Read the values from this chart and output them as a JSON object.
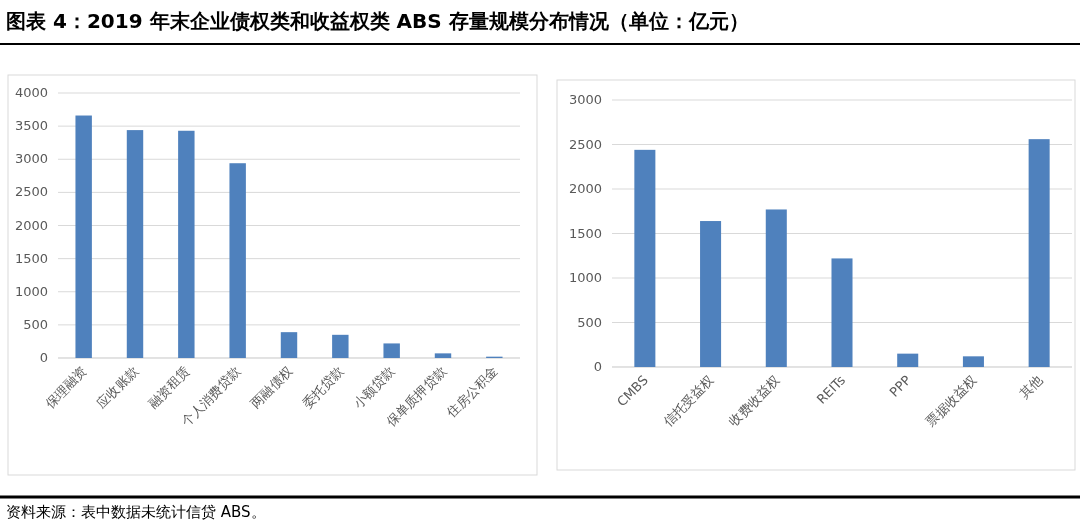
{
  "chart_data": [
    {
      "type": "bar",
      "title": "图表 4：2019 年末企业债权类和收益权类 ABS 存量规模分布情况（单位：亿元）",
      "categories": [
        "保理融资",
        "应收账款",
        "融资租赁",
        "个人消费贷款",
        "两融债权",
        "委托贷款",
        "小额贷款",
        "保单质押贷款",
        "住房公积金"
      ],
      "values": [
        3660,
        3440,
        3430,
        2940,
        390,
        350,
        220,
        70,
        20
      ],
      "color": "#4f81bd",
      "ylim": [
        0,
        4000
      ],
      "yticks": [
        0,
        500,
        1000,
        1500,
        2000,
        2500,
        3000,
        3500,
        4000
      ],
      "grid": "y"
    },
    {
      "type": "bar",
      "annotations": [
        "资料来源：表中数据未统计信贷 ABS。"
      ],
      "categories": [
        "CMBS",
        "信托受益权",
        "收费收益权",
        "REITs",
        "PPP",
        "票据收益权",
        "其他"
      ],
      "values": [
        2440,
        1640,
        1770,
        1220,
        150,
        120,
        2560
      ],
      "color": "#4f81bd",
      "ylim": [
        0,
        3000
      ],
      "yticks": [
        0,
        500,
        1000,
        1500,
        2000,
        2500,
        3000
      ],
      "grid": "y"
    }
  ]
}
